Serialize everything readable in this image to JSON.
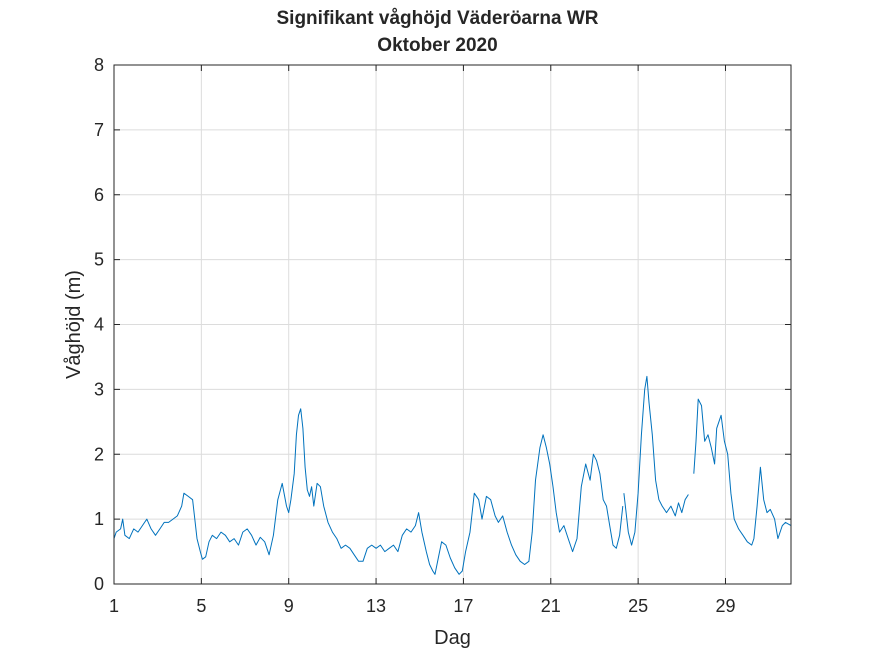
{
  "chart_data": {
    "type": "line",
    "title": "Signifikant våghöjd Väderöarna WR",
    "subtitle": "Oktober 2020",
    "xlabel": "Dag",
    "ylabel": "Våghöjd (m)",
    "xlim": [
      1,
      32
    ],
    "ylim": [
      0,
      8
    ],
    "xticks": [
      1,
      5,
      9,
      13,
      17,
      21,
      25,
      29
    ],
    "xtick_labels": [
      "1",
      "5",
      "9",
      "13",
      "17",
      "21",
      "25",
      "29"
    ],
    "yticks": [
      0,
      1,
      2,
      3,
      4,
      5,
      6,
      7,
      8
    ],
    "ytick_labels": [
      "0",
      "1",
      "2",
      "3",
      "4",
      "5",
      "6",
      "7",
      "8"
    ],
    "grid": true,
    "series_color": "#0072BD",
    "segments": [
      [
        [
          1.0,
          0.7
        ],
        [
          1.1,
          0.8
        ],
        [
          1.3,
          0.85
        ],
        [
          1.4,
          1.0
        ],
        [
          1.5,
          0.75
        ],
        [
          1.7,
          0.7
        ],
        [
          1.9,
          0.85
        ],
        [
          2.1,
          0.8
        ],
        [
          2.3,
          0.9
        ],
        [
          2.5,
          1.0
        ],
        [
          2.7,
          0.85
        ],
        [
          2.9,
          0.75
        ],
        [
          3.1,
          0.85
        ],
        [
          3.3,
          0.95
        ],
        [
          3.5,
          0.95
        ],
        [
          3.7,
          1.0
        ],
        [
          3.9,
          1.05
        ],
        [
          4.1,
          1.2
        ],
        [
          4.2,
          1.4
        ],
        [
          4.4,
          1.35
        ],
        [
          4.6,
          1.3
        ],
        [
          4.7,
          1.0
        ],
        [
          4.8,
          0.7
        ],
        [
          4.95,
          0.5
        ],
        [
          5.05,
          0.38
        ],
        [
          5.2,
          0.42
        ],
        [
          5.35,
          0.65
        ],
        [
          5.5,
          0.75
        ],
        [
          5.7,
          0.7
        ],
        [
          5.9,
          0.8
        ],
        [
          6.1,
          0.75
        ],
        [
          6.3,
          0.65
        ],
        [
          6.5,
          0.7
        ],
        [
          6.7,
          0.6
        ],
        [
          6.9,
          0.8
        ],
        [
          7.1,
          0.85
        ],
        [
          7.3,
          0.75
        ],
        [
          7.5,
          0.6
        ],
        [
          7.7,
          0.72
        ],
        [
          7.9,
          0.65
        ],
        [
          8.1,
          0.45
        ],
        [
          8.3,
          0.75
        ],
        [
          8.5,
          1.3
        ],
        [
          8.7,
          1.55
        ],
        [
          8.9,
          1.2
        ],
        [
          9.0,
          1.1
        ],
        [
          9.1,
          1.3
        ],
        [
          9.25,
          1.7
        ],
        [
          9.35,
          2.3
        ],
        [
          9.45,
          2.6
        ],
        [
          9.55,
          2.7
        ],
        [
          9.65,
          2.4
        ],
        [
          9.75,
          1.8
        ],
        [
          9.85,
          1.45
        ],
        [
          9.95,
          1.35
        ],
        [
          10.05,
          1.5
        ],
        [
          10.15,
          1.2
        ],
        [
          10.3,
          1.55
        ],
        [
          10.45,
          1.5
        ],
        [
          10.6,
          1.2
        ],
        [
          10.8,
          0.95
        ],
        [
          11.0,
          0.8
        ],
        [
          11.2,
          0.7
        ],
        [
          11.4,
          0.55
        ],
        [
          11.6,
          0.6
        ],
        [
          11.8,
          0.55
        ],
        [
          12.0,
          0.45
        ],
        [
          12.2,
          0.35
        ],
        [
          12.4,
          0.35
        ],
        [
          12.6,
          0.55
        ],
        [
          12.8,
          0.6
        ],
        [
          13.0,
          0.55
        ],
        [
          13.2,
          0.6
        ],
        [
          13.4,
          0.5
        ],
        [
          13.6,
          0.55
        ],
        [
          13.8,
          0.6
        ],
        [
          14.0,
          0.5
        ],
        [
          14.2,
          0.75
        ],
        [
          14.4,
          0.85
        ],
        [
          14.6,
          0.8
        ],
        [
          14.8,
          0.9
        ],
        [
          14.95,
          1.1
        ],
        [
          15.1,
          0.8
        ],
        [
          15.3,
          0.5
        ],
        [
          15.45,
          0.3
        ],
        [
          15.6,
          0.2
        ],
        [
          15.7,
          0.15
        ],
        [
          15.85,
          0.4
        ],
        [
          16.0,
          0.65
        ],
        [
          16.2,
          0.6
        ],
        [
          16.4,
          0.4
        ],
        [
          16.6,
          0.25
        ],
        [
          16.8,
          0.15
        ],
        [
          16.95,
          0.2
        ],
        [
          17.1,
          0.5
        ],
        [
          17.3,
          0.8
        ],
        [
          17.5,
          1.4
        ],
        [
          17.7,
          1.3
        ],
        [
          17.85,
          1.0
        ],
        [
          18.05,
          1.35
        ],
        [
          18.25,
          1.3
        ],
        [
          18.45,
          1.05
        ],
        [
          18.6,
          0.95
        ],
        [
          18.8,
          1.05
        ],
        [
          19.0,
          0.8
        ],
        [
          19.2,
          0.6
        ],
        [
          19.4,
          0.45
        ],
        [
          19.6,
          0.35
        ],
        [
          19.8,
          0.3
        ],
        [
          20.0,
          0.35
        ],
        [
          20.15,
          0.8
        ],
        [
          20.3,
          1.6
        ],
        [
          20.5,
          2.1
        ],
        [
          20.65,
          2.3
        ],
        [
          20.8,
          2.1
        ],
        [
          20.95,
          1.85
        ],
        [
          21.1,
          1.5
        ],
        [
          21.25,
          1.1
        ],
        [
          21.4,
          0.8
        ],
        [
          21.6,
          0.9
        ],
        [
          21.8,
          0.7
        ],
        [
          22.0,
          0.5
        ],
        [
          22.2,
          0.7
        ],
        [
          22.4,
          1.5
        ],
        [
          22.6,
          1.85
        ],
        [
          22.8,
          1.6
        ],
        [
          22.95,
          2.0
        ],
        [
          23.1,
          1.9
        ],
        [
          23.25,
          1.7
        ],
        [
          23.4,
          1.3
        ],
        [
          23.55,
          1.2
        ],
        [
          23.7,
          0.9
        ],
        [
          23.85,
          0.6
        ],
        [
          24.0,
          0.55
        ],
        [
          24.15,
          0.75
        ],
        [
          24.3,
          1.2
        ]
      ],
      [
        [
          24.35,
          1.4
        ],
        [
          24.55,
          0.8
        ],
        [
          24.7,
          0.6
        ],
        [
          24.85,
          0.8
        ],
        [
          25.0,
          1.4
        ],
        [
          25.15,
          2.3
        ],
        [
          25.3,
          3.0
        ],
        [
          25.4,
          3.2
        ],
        [
          25.5,
          2.8
        ],
        [
          25.65,
          2.3
        ],
        [
          25.8,
          1.6
        ],
        [
          25.95,
          1.3
        ],
        [
          26.1,
          1.2
        ],
        [
          26.3,
          1.1
        ],
        [
          26.5,
          1.2
        ],
        [
          26.7,
          1.05
        ],
        [
          26.85,
          1.25
        ],
        [
          27.0,
          1.1
        ],
        [
          27.15,
          1.3
        ],
        [
          27.3,
          1.38
        ]
      ],
      [
        [
          27.55,
          1.7
        ],
        [
          27.65,
          2.2
        ],
        [
          27.75,
          2.85
        ],
        [
          27.9,
          2.75
        ],
        [
          28.05,
          2.2
        ],
        [
          28.2,
          2.3
        ],
        [
          28.35,
          2.1
        ],
        [
          28.5,
          1.85
        ],
        [
          28.6,
          2.4
        ],
        [
          28.8,
          2.6
        ],
        [
          28.95,
          2.2
        ],
        [
          29.1,
          2.0
        ],
        [
          29.25,
          1.4
        ],
        [
          29.4,
          1.0
        ],
        [
          29.6,
          0.85
        ],
        [
          29.8,
          0.75
        ],
        [
          30.0,
          0.65
        ],
        [
          30.2,
          0.6
        ],
        [
          30.3,
          0.7
        ],
        [
          30.45,
          1.2
        ],
        [
          30.6,
          1.8
        ],
        [
          30.75,
          1.3
        ],
        [
          30.9,
          1.1
        ],
        [
          31.05,
          1.15
        ],
        [
          31.25,
          1.0
        ],
        [
          31.4,
          0.7
        ],
        [
          31.6,
          0.9
        ],
        [
          31.75,
          0.95
        ],
        [
          32.0,
          0.9
        ]
      ]
    ]
  }
}
